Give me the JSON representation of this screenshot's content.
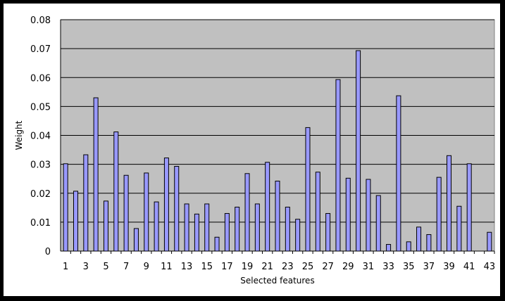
{
  "chart_data": {
    "type": "bar",
    "xlabel": "Selected features",
    "ylabel": "Weight",
    "ylim": [
      0,
      0.08
    ],
    "yticks": [
      0,
      0.01,
      0.02,
      0.03,
      0.04,
      0.05,
      0.06,
      0.07,
      0.08
    ],
    "ytick_labels": [
      "0",
      "0.01",
      "0.02",
      "0.03",
      "0.04",
      "0.05",
      "0.06",
      "0.07",
      "0.08"
    ],
    "grid": true,
    "plot_background": "#C0C0C0",
    "bar_color": "#9999FF",
    "categories": [
      "1",
      "2",
      "3",
      "4",
      "5",
      "6",
      "7",
      "8",
      "9",
      "10",
      "11",
      "12",
      "13",
      "14",
      "15",
      "16",
      "17",
      "18",
      "19",
      "20",
      "21",
      "22",
      "23",
      "24",
      "25",
      "26",
      "27",
      "28",
      "29",
      "30",
      "31",
      "32",
      "33",
      "34",
      "35",
      "36",
      "37",
      "38",
      "39",
      "40",
      "41",
      "42",
      "43"
    ],
    "xtick_labels": [
      "1",
      "3",
      "5",
      "7",
      "9",
      "11",
      "13",
      "15",
      "17",
      "19",
      "21",
      "23",
      "25",
      "27",
      "29",
      "31",
      "33",
      "35",
      "37",
      "39",
      "41",
      "43"
    ],
    "values": [
      0.0302,
      0.0207,
      0.0333,
      0.053,
      0.0173,
      0.0412,
      0.0262,
      0.0078,
      0.027,
      0.017,
      0.0322,
      0.0293,
      0.0163,
      0.0128,
      0.0163,
      0.0048,
      0.013,
      0.0152,
      0.0268,
      0.0163,
      0.0307,
      0.0242,
      0.0152,
      0.011,
      0.0427,
      0.0273,
      0.013,
      0.0593,
      0.0252,
      0.0693,
      0.0248,
      0.0192,
      0.0023,
      0.0537,
      0.0032,
      0.0083,
      0.0057,
      0.0255,
      0.033,
      0.0155,
      0.0302,
      0.0,
      0.0065
    ]
  }
}
